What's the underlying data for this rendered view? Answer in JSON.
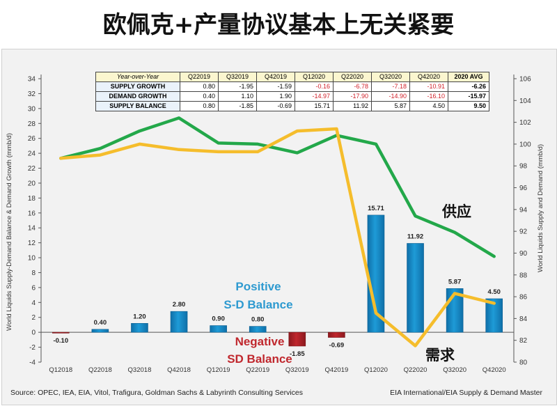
{
  "headline": "欧佩克+产量协议基本上无关紧要",
  "table": {
    "corner": "Year-over-Year",
    "columns": [
      "Q22019",
      "Q32019",
      "Q42019",
      "Q12020",
      "Q22020",
      "Q32020",
      "Q42020",
      "2020 AVG"
    ],
    "rows": [
      {
        "label": "SUPPLY GROWTH",
        "cells": [
          "0.80",
          "-1.95",
          "-1.59",
          "-0.16",
          "-6.78",
          "-7.18",
          "-10.91",
          "-6.26"
        ]
      },
      {
        "label": "DEMAND GROWTH",
        "cells": [
          "0.40",
          "1.10",
          "1.90",
          "-14.97",
          "-17.90",
          "-14.90",
          "-16.10",
          "-15.97"
        ]
      },
      {
        "label": "SUPPLY BALANCE",
        "cells": [
          "0.80",
          "-1.85",
          "-0.69",
          "15.71",
          "11.92",
          "5.87",
          "4.50",
          "9.50"
        ]
      }
    ]
  },
  "annotations": {
    "positive_line1": "Positive",
    "positive_line2": "S-D Balance",
    "negative_line1": "Negative",
    "negative_line2": "SD Balance",
    "supply_cn": "供应",
    "demand_cn": "需求"
  },
  "footer": {
    "source": "Source: OPEC,  IEA, EIA, Vitol, Trafigura, Goldman Sachs  & Labyrinth Consulting Services",
    "credit": "EIA International/EIA Supply & Demand Master"
  },
  "colors": {
    "positive_bar": "#1e9bd7",
    "negative_bar": "#c0272d",
    "supply_line": "#23a84a",
    "demand_line": "#f5bd2c",
    "background": "#f2f2f2"
  },
  "chart_data": {
    "type": "bar",
    "categories": [
      "Q12018",
      "Q22018",
      "Q32018",
      "Q42018",
      "Q12019",
      "Q22019",
      "Q32019",
      "Q42019",
      "Q12020",
      "Q22020",
      "Q32020",
      "Q42020"
    ],
    "ylabel": "World Liquids Supply-Demand Balance & Demand Growth (mmb/d)",
    "y2label": "World Liquids Supply and Demand (mmb/d)",
    "ylim": [
      -4,
      34
    ],
    "y_ticks": [
      -4,
      -2,
      0,
      2,
      4,
      6,
      8,
      10,
      12,
      14,
      16,
      18,
      20,
      22,
      24,
      26,
      28,
      30,
      32,
      34
    ],
    "y2lim": [
      80,
      106
    ],
    "y2_ticks": [
      80,
      82,
      84,
      86,
      88,
      90,
      92,
      94,
      96,
      98,
      100,
      102,
      104,
      106
    ],
    "grid": false,
    "bars": {
      "values": [
        -0.1,
        0.4,
        1.2,
        2.8,
        0.9,
        0.8,
        -1.85,
        -0.69,
        15.71,
        11.92,
        5.87,
        4.5
      ],
      "labels": [
        "-0.10",
        "0.40",
        "1.20",
        "2.80",
        "0.90",
        "0.80",
        "-1.85",
        "-0.69",
        "15.71",
        "11.92",
        "5.87",
        "4.50"
      ]
    },
    "lines": [
      {
        "name": "供应",
        "axis": "right",
        "values": [
          98.7,
          99.6,
          101.2,
          102.4,
          100.1,
          100.0,
          99.2,
          100.8,
          100.0,
          93.4,
          91.9,
          89.7
        ]
      },
      {
        "name": "需求",
        "axis": "right",
        "values": [
          98.7,
          99.0,
          100.0,
          99.5,
          99.3,
          99.3,
          101.2,
          101.4,
          84.5,
          81.5,
          86.3,
          85.4
        ]
      }
    ]
  }
}
